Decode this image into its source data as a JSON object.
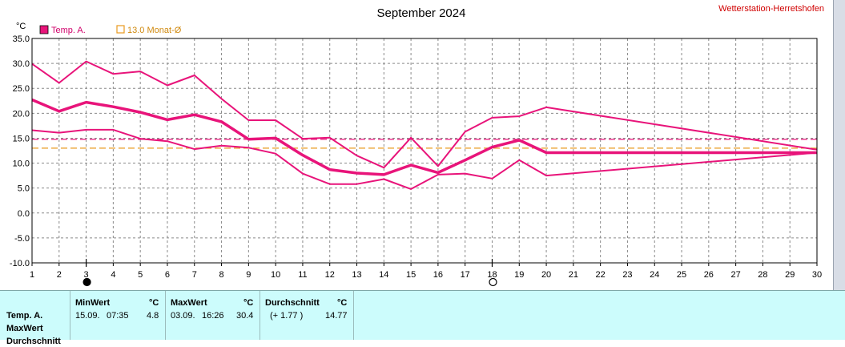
{
  "site_name": "Wetterstation-Herretshofen",
  "legend": {
    "temp_label": "Temp. A.",
    "temp_color": "#e8147a",
    "monthly_avg_label": "13.0 Monat-Ø",
    "monthly_avg_color": "#e89a1e"
  },
  "chart_data": {
    "type": "line",
    "title": "September 2024",
    "ylabel": "°C",
    "xlabel": "",
    "xlim": [
      1,
      30
    ],
    "ylim": [
      -10,
      35
    ],
    "grid": true,
    "x_ticks": [
      "1",
      "2",
      "3",
      "4",
      "5",
      "6",
      "7",
      "8",
      "9",
      "10",
      "11",
      "12",
      "13",
      "14",
      "15",
      "16",
      "17",
      "18",
      "19",
      "20",
      "21",
      "22",
      "23",
      "24",
      "25",
      "26",
      "27",
      "28",
      "29",
      "30"
    ],
    "y_ticks": [
      "35.0",
      "30.0",
      "25.0",
      "20.0",
      "15.0",
      "10.0",
      "5.0",
      "0.0",
      "-5.0",
      "-10.0"
    ],
    "series": [
      {
        "key": "max",
        "color": "#e8147a",
        "width": 2,
        "x": [
          1,
          2,
          3,
          4,
          5,
          6,
          7,
          8,
          9,
          10,
          11,
          12,
          13,
          14,
          15,
          16,
          17,
          18,
          19,
          20,
          30
        ],
        "y": [
          29.9,
          26.1,
          30.4,
          27.9,
          28.4,
          25.6,
          27.6,
          22.9,
          18.6,
          18.6,
          14.9,
          15.1,
          11.5,
          9.1,
          15.1,
          9.4,
          16.3,
          19.1,
          19.4,
          21.2,
          12.7
        ]
      },
      {
        "key": "avg",
        "color": "#e8147a",
        "width": 3.5,
        "x": [
          1,
          2,
          3,
          4,
          5,
          6,
          7,
          8,
          9,
          10,
          11,
          12,
          13,
          14,
          15,
          16,
          17,
          18,
          19,
          20,
          30
        ],
        "y": [
          22.7,
          20.4,
          22.2,
          21.3,
          20.2,
          18.7,
          19.7,
          18.3,
          14.8,
          15.0,
          11.6,
          8.7,
          8.0,
          7.7,
          9.6,
          8.1,
          10.6,
          13.2,
          14.6,
          12.1,
          12.1
        ]
      },
      {
        "key": "min",
        "color": "#e8147a",
        "width": 2,
        "x": [
          1,
          2,
          3,
          4,
          5,
          6,
          7,
          8,
          9,
          10,
          11,
          12,
          13,
          14,
          15,
          16,
          17,
          18,
          19,
          20,
          30
        ],
        "y": [
          16.6,
          16.1,
          16.7,
          16.7,
          14.9,
          14.4,
          12.8,
          13.5,
          13.1,
          11.9,
          7.9,
          5.8,
          5.8,
          6.8,
          4.8,
          7.7,
          7.9,
          6.9,
          10.6,
          7.5,
          12.1
        ]
      }
    ],
    "reference_lines": [
      {
        "key": "monthly_avg",
        "y": 13.0,
        "color": "#e89a1e",
        "style": "dashed"
      },
      {
        "key": "mean_line",
        "y": 14.77,
        "color": "#e8147a",
        "style": "dashed"
      }
    ],
    "markers": [
      {
        "x": 3,
        "style": "filled"
      },
      {
        "x": 18,
        "style": "open"
      }
    ]
  },
  "stats": {
    "row_labels": [
      "Temp. A.",
      "MaxWert",
      "Durchschnitt"
    ],
    "min": {
      "header": "MinWert",
      "unit": "°C",
      "date": "15.09.",
      "time": "07:35",
      "value": "4.8"
    },
    "max": {
      "header": "MaxWert",
      "unit": "°C",
      "date": "03.09.",
      "time": "16:26",
      "value": "30.4"
    },
    "avg": {
      "header": "Durchschnitt",
      "unit": "°C",
      "deviation": "(+ 1.77 )",
      "value": "14.77"
    }
  }
}
